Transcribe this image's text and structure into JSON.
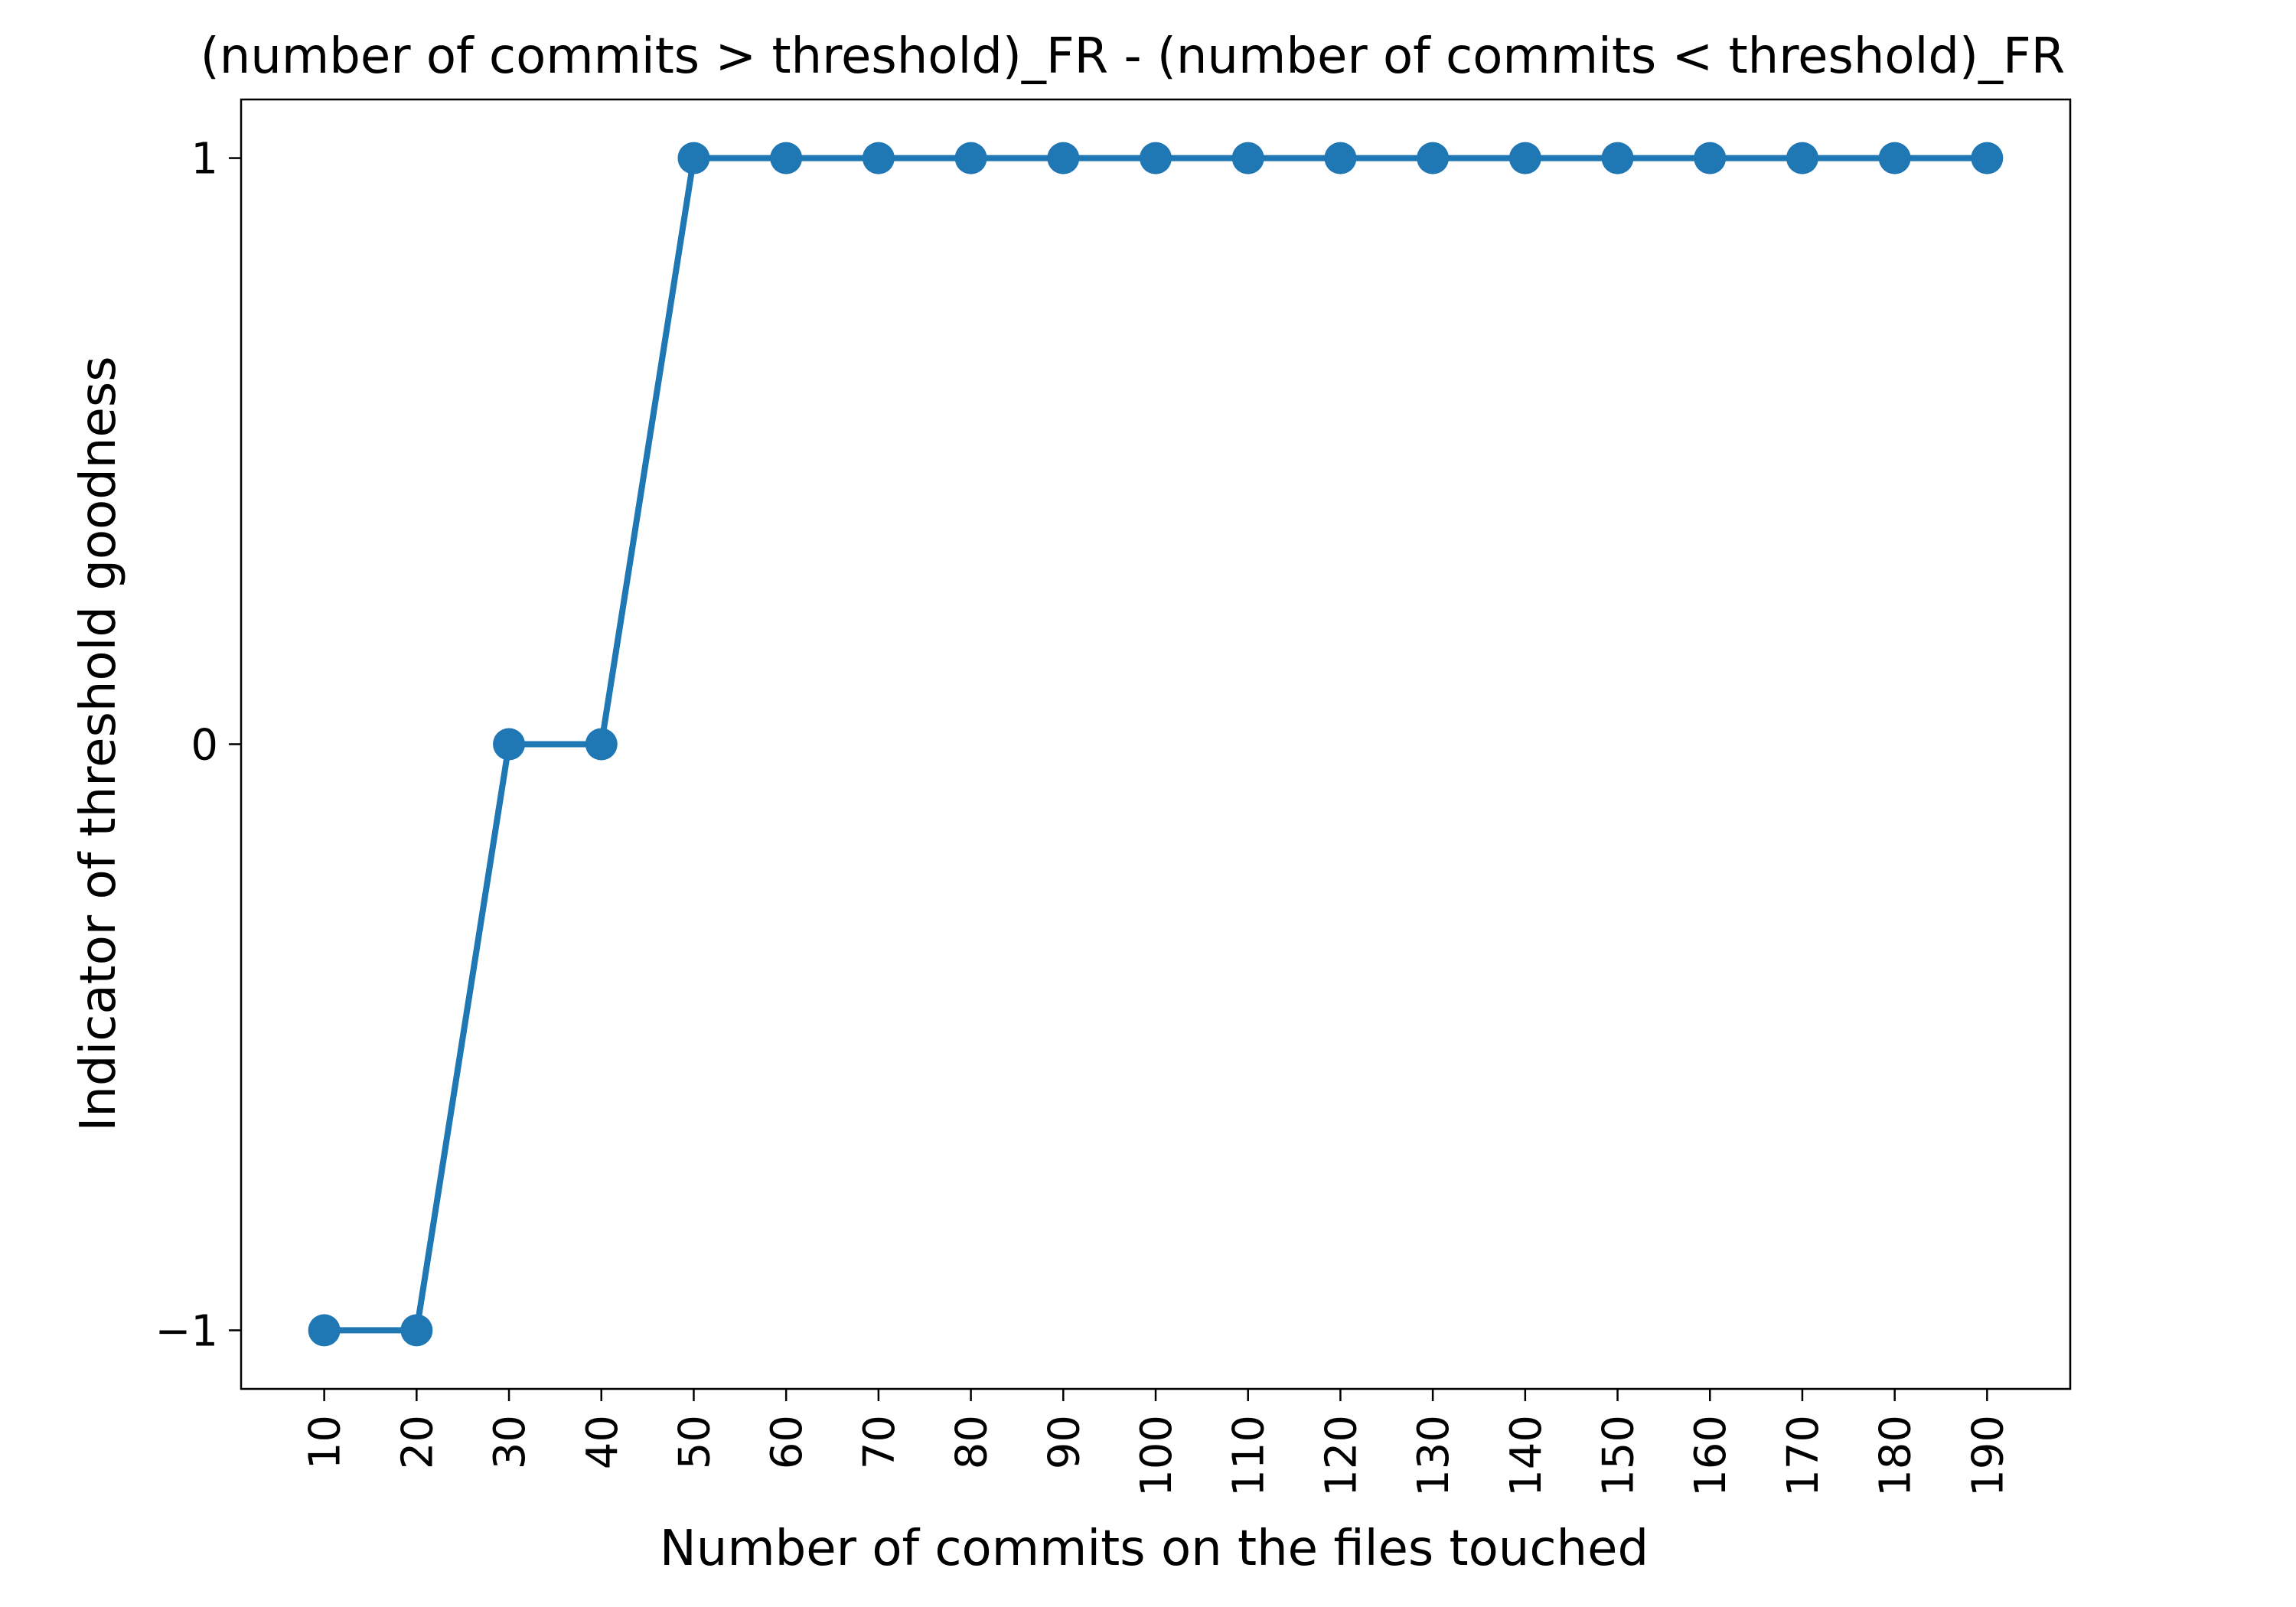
{
  "chart_data": {
    "type": "line",
    "title": "(number of commits > threshold)_FR - (number of commits < threshold)_FR",
    "xlabel": "Number of commits on the files touched",
    "ylabel": "Indicator of threshold goodness",
    "categories": [
      "10",
      "20",
      "30",
      "40",
      "50",
      "60",
      "70",
      "80",
      "90",
      "100",
      "110",
      "120",
      "130",
      "140",
      "150",
      "160",
      "170",
      "180",
      "190"
    ],
    "x": [
      10,
      20,
      30,
      40,
      50,
      60,
      70,
      80,
      90,
      100,
      110,
      120,
      130,
      140,
      150,
      160,
      170,
      180,
      190
    ],
    "series": [
      {
        "values": [
          -1,
          -1,
          0,
          0,
          1,
          1,
          1,
          1,
          1,
          1,
          1,
          1,
          1,
          1,
          1,
          1,
          1,
          1,
          1
        ],
        "color": "#1f77b4",
        "marker": "circle"
      }
    ],
    "xlim": [
      1,
      199
    ],
    "ylim": [
      -1.1,
      1.1
    ],
    "yticks": [
      -1,
      0,
      1
    ],
    "ytick_labels": [
      "−1",
      "0",
      "1"
    ],
    "grid": false,
    "legend": "none"
  }
}
